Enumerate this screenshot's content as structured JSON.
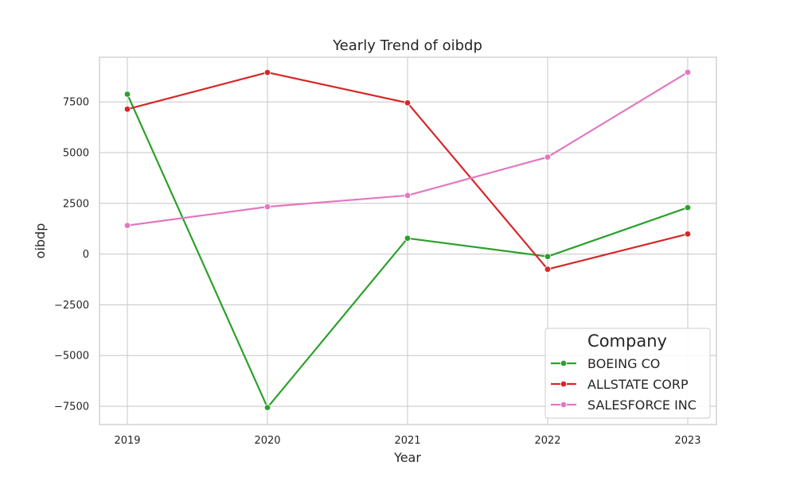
{
  "chart_data": {
    "type": "line",
    "title": "Yearly Trend of oibdp",
    "xlabel": "Year",
    "ylabel": "oibdp",
    "categories": [
      "2019",
      "2020",
      "2021",
      "2022",
      "2023"
    ],
    "y_ticks": [
      -7500,
      -5000,
      -2500,
      0,
      2500,
      5000,
      7500
    ],
    "y_tick_labels": [
      "−7500",
      "−5000",
      "−2500",
      "0",
      "2500",
      "5000",
      "7500"
    ],
    "ylim": [
      -8400,
      9700
    ],
    "grid": true,
    "legend": {
      "title": "Company",
      "position": "lower-right"
    },
    "series": [
      {
        "name": "BOEING CO",
        "color": "#2ca02c",
        "values": [
          7880,
          -7560,
          780,
          -120,
          2290
        ]
      },
      {
        "name": "ALLSTATE CORP",
        "color": "#d62728",
        "values": [
          7140,
          8950,
          7450,
          -750,
          990
        ]
      },
      {
        "name": "SALESFORCE INC",
        "color": "#e377c2",
        "values": [
          1410,
          2330,
          2890,
          4780,
          8960
        ]
      }
    ]
  }
}
